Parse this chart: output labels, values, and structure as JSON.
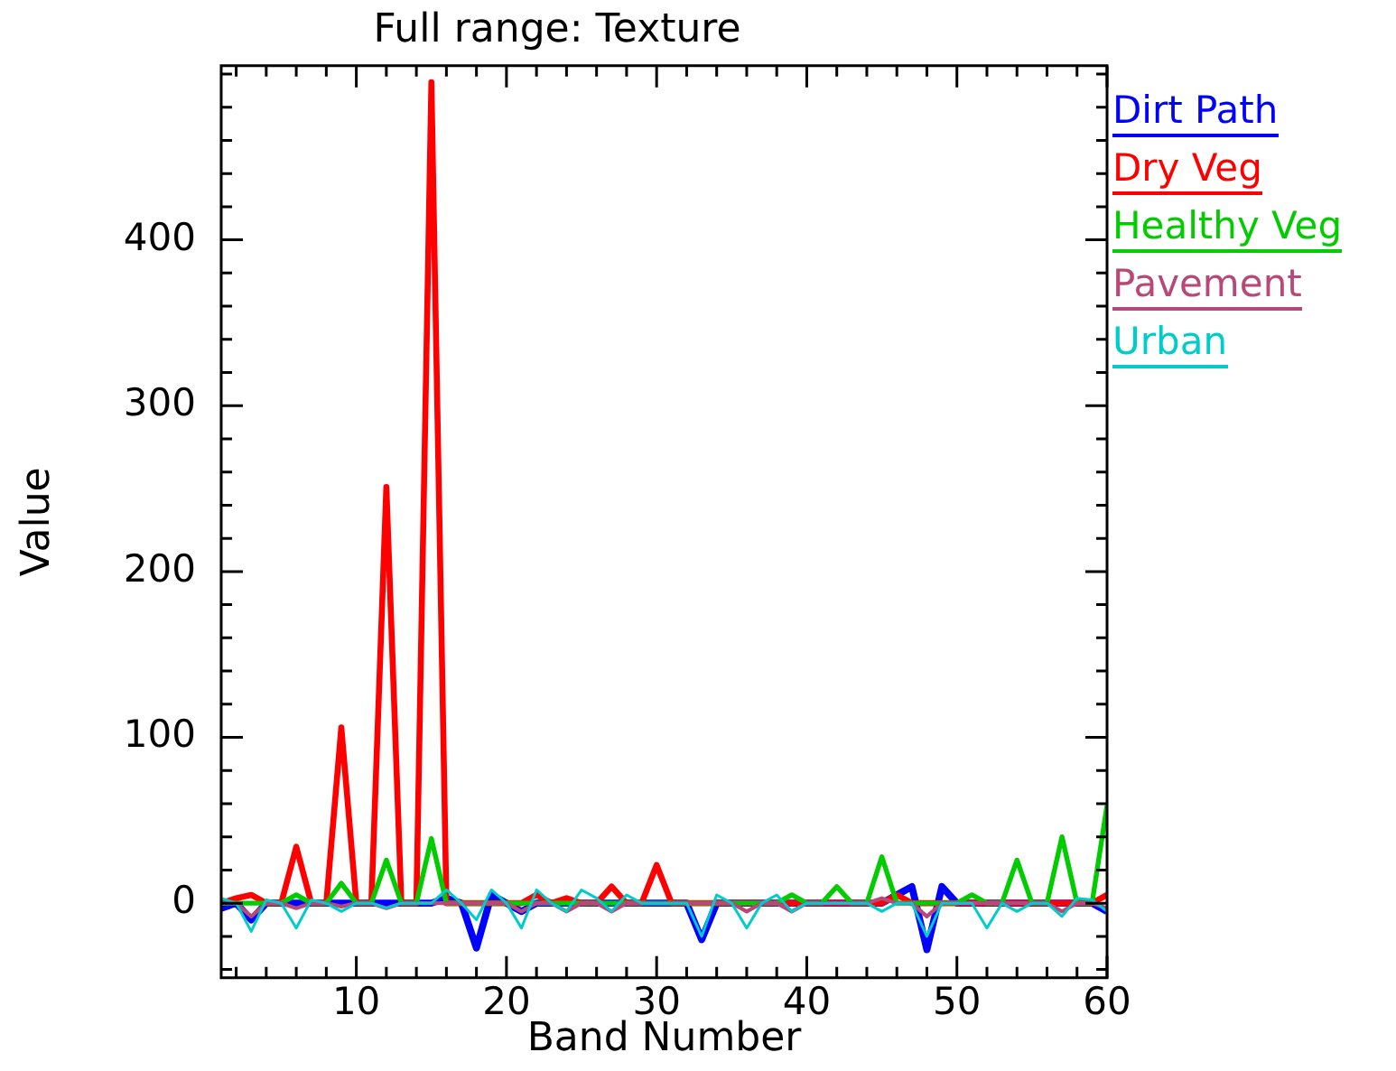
{
  "chart_data": {
    "type": "line",
    "title": "Full range: Texture",
    "xlabel": "Band Number",
    "ylabel": "Value",
    "x": [
      1,
      2,
      3,
      4,
      5,
      6,
      7,
      8,
      9,
      10,
      11,
      12,
      13,
      14,
      15,
      16,
      17,
      18,
      19,
      20,
      21,
      22,
      23,
      24,
      25,
      26,
      27,
      28,
      29,
      30,
      31,
      32,
      33,
      34,
      35,
      36,
      37,
      38,
      39,
      40,
      41,
      42,
      43,
      44,
      45,
      46,
      47,
      48,
      49,
      50,
      51,
      52,
      53,
      54,
      55,
      56,
      57,
      58,
      59,
      60
    ],
    "xlim": [
      1,
      60
    ],
    "xticks": [
      10,
      20,
      30,
      40,
      50,
      60
    ],
    "ylim": [
      -45,
      505
    ],
    "yticks": [
      0,
      100,
      200,
      300,
      400
    ],
    "grid": false,
    "legend": "top right",
    "marker": "none",
    "line_style": "solid",
    "series": [
      {
        "name": "Dirt Path",
        "color": "#0000ff",
        "values": [
          -3,
          0,
          -10,
          0,
          0,
          0,
          0,
          0,
          0,
          0,
          0,
          0,
          0,
          0,
          0,
          3,
          0,
          -27,
          5,
          0,
          -5,
          0,
          0,
          0,
          0,
          0,
          0,
          0,
          0,
          0,
          0,
          0,
          -22,
          0,
          0,
          0,
          0,
          0,
          0,
          0,
          0,
          0,
          0,
          0,
          0,
          5,
          10,
          -28,
          10,
          0,
          0,
          0,
          0,
          0,
          0,
          0,
          0,
          0,
          0,
          -5
        ]
      },
      {
        "name": "Dry Veg",
        "color": "#ff0000",
        "values": [
          0,
          3,
          5,
          0,
          0,
          34,
          0,
          0,
          106,
          0,
          0,
          251,
          0,
          0,
          495,
          0,
          0,
          0,
          0,
          0,
          0,
          5,
          0,
          3,
          0,
          0,
          10,
          0,
          0,
          23,
          0,
          0,
          0,
          0,
          0,
          0,
          0,
          0,
          0,
          0,
          0,
          0,
          0,
          0,
          0,
          5,
          0,
          0,
          0,
          0,
          0,
          0,
          0,
          0,
          0,
          0,
          0,
          0,
          0,
          5
        ]
      },
      {
        "name": "Healthy Veg",
        "color": "#00cc00",
        "values": [
          0,
          0,
          0,
          0,
          0,
          5,
          0,
          0,
          12,
          0,
          0,
          26,
          0,
          0,
          39,
          0,
          0,
          0,
          0,
          0,
          0,
          0,
          0,
          0,
          0,
          0,
          0,
          0,
          0,
          0,
          0,
          0,
          0,
          0,
          0,
          0,
          0,
          0,
          5,
          0,
          0,
          10,
          0,
          0,
          28,
          0,
          0,
          0,
          0,
          0,
          5,
          0,
          0,
          26,
          0,
          0,
          40,
          0,
          0,
          59
        ]
      },
      {
        "name": "Pavement",
        "color": "#b84878",
        "values": [
          0,
          0,
          -8,
          0,
          0,
          -3,
          0,
          0,
          -2,
          0,
          0,
          -3,
          0,
          0,
          0,
          0,
          0,
          0,
          0,
          0,
          -5,
          0,
          0,
          -5,
          0,
          0,
          -5,
          0,
          0,
          0,
          0,
          0,
          0,
          0,
          0,
          -5,
          0,
          0,
          -5,
          0,
          0,
          0,
          0,
          0,
          3,
          0,
          0,
          -8,
          0,
          0,
          0,
          0,
          0,
          0,
          0,
          0,
          -5,
          0,
          0,
          -3
        ]
      },
      {
        "name": "Urban",
        "color": "#00cccc",
        "values": [
          3,
          0,
          -17,
          2,
          0,
          -15,
          2,
          0,
          -5,
          0,
          0,
          -3,
          0,
          0,
          0,
          8,
          0,
          -10,
          8,
          0,
          -15,
          8,
          0,
          -5,
          8,
          3,
          -5,
          5,
          0,
          0,
          0,
          0,
          -20,
          5,
          0,
          -15,
          0,
          5,
          -5,
          0,
          0,
          0,
          0,
          0,
          -5,
          0,
          0,
          -20,
          0,
          0,
          0,
          -15,
          0,
          -5,
          0,
          0,
          -8,
          3,
          2,
          -5
        ]
      }
    ]
  }
}
